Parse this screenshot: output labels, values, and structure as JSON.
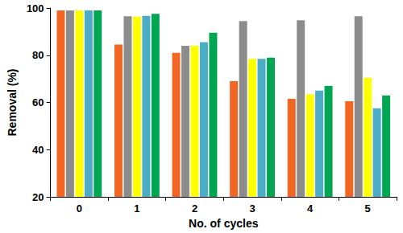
{
  "chart_data": {
    "type": "bar",
    "x_label": "No. of cycles",
    "y_label": "Removal (%)",
    "categories": [
      "0",
      "1",
      "2",
      "3",
      "4",
      "5"
    ],
    "series": [
      {
        "color": "#f26522",
        "values": [
          99,
          84.5,
          81,
          69,
          61.5,
          60.5
        ]
      },
      {
        "color": "#8c8c8c",
        "values": [
          99,
          96.5,
          84,
          94.5,
          94.8,
          96.5
        ]
      },
      {
        "color": "#ffff00",
        "values": [
          99,
          96.3,
          84,
          78.5,
          63.5,
          70.5
        ]
      },
      {
        "color": "#4bacc6",
        "values": [
          99,
          96.7,
          85.5,
          78.5,
          65,
          57.5
        ]
      },
      {
        "color": "#00a651",
        "values": [
          99,
          97.5,
          89.5,
          79,
          67,
          63
        ]
      }
    ],
    "ylim": [
      20,
      100
    ],
    "yticks": [
      20,
      40,
      60,
      80,
      100
    ],
    "grid": false
  }
}
